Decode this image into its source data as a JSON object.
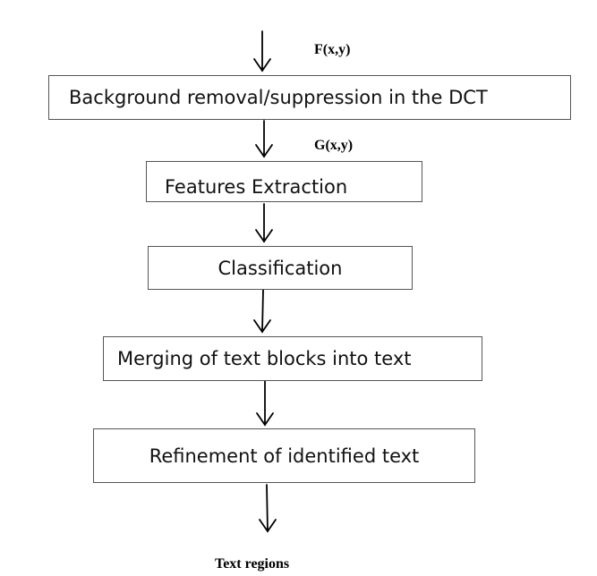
{
  "input_label": "F(x,y)",
  "intermediate_label": "G(x,y)",
  "output_label": "Text regions",
  "steps": [
    "Background removal/suppression in the DCT",
    "Features Extraction",
    "Classification",
    "Merging of text blocks into text",
    "Refinement of identified text"
  ]
}
